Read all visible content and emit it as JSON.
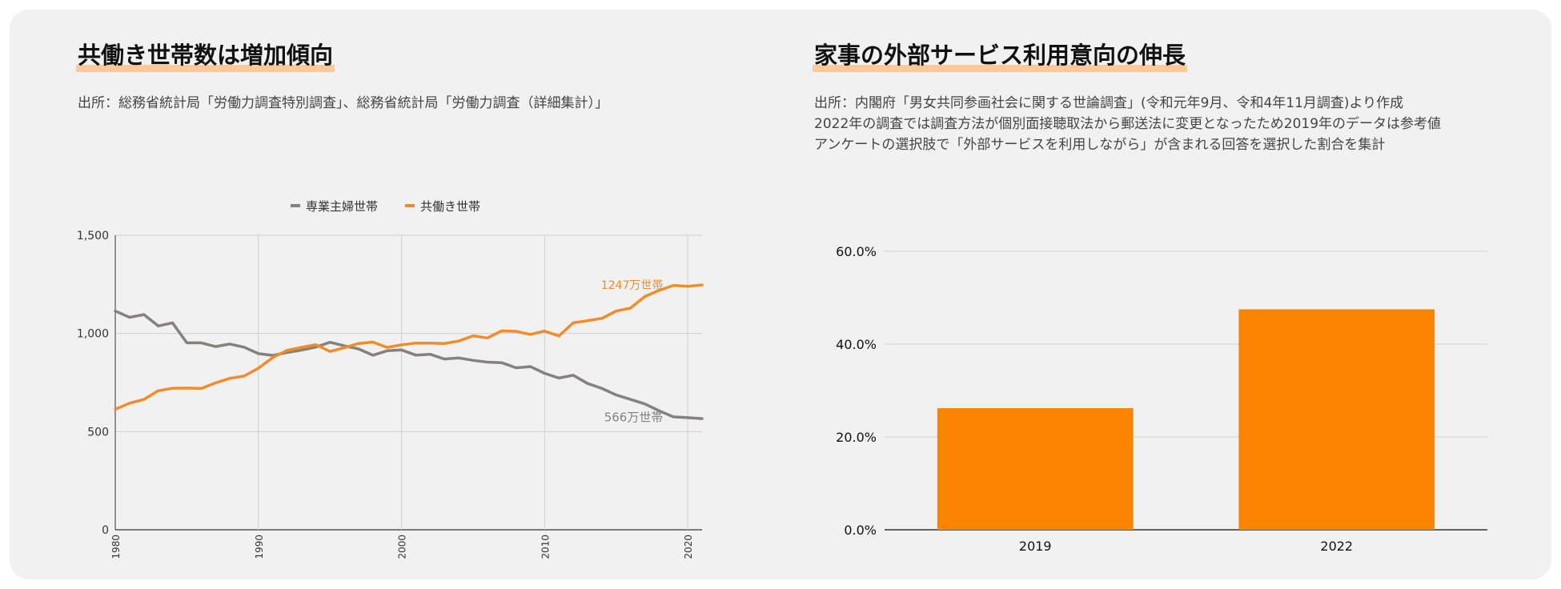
{
  "left_panel": {
    "title": "共働き世帯数は増加傾向",
    "source": "出所：総務省統計局「労働力調査特別調査」、総務省統計局「労働力調査（詳細集計）」"
  },
  "right_panel": {
    "title": "家事の外部サービス利用意向の伸長",
    "notes": [
      "出所：内閣府「男女共同参画社会に関する世論調査」(令和元年9月、令和4年11月調査)より作成",
      "2022年の調査では調査方法が個別面接聴取法から郵送法に変更となったため2019年のデータは参考値",
      "アンケートの選択肢で「外部サービスを利用しながら」が含まれる回答を選択した割合を集計"
    ]
  },
  "colors": {
    "gray": "#85827e",
    "orange": "#f28c28",
    "bar": "#fb8500"
  },
  "chart_data": [
    {
      "type": "line",
      "x": [
        1980,
        1981,
        1982,
        1983,
        1984,
        1985,
        1986,
        1987,
        1988,
        1989,
        1990,
        1991,
        1992,
        1993,
        1994,
        1995,
        1996,
        1997,
        1998,
        1999,
        2000,
        2001,
        2002,
        2003,
        2004,
        2005,
        2006,
        2007,
        2008,
        2009,
        2010,
        2011,
        2012,
        2013,
        2014,
        2015,
        2016,
        2017,
        2018,
        2019,
        2020,
        2021
      ],
      "series": [
        {
          "name": "専業主婦世帯",
          "color": "#85827e",
          "values": [
            1114,
            1082,
            1096,
            1038,
            1054,
            952,
            952,
            933,
            946,
            930,
            897,
            888,
            903,
            915,
            930,
            955,
            937,
            921,
            889,
            912,
            916,
            890,
            894,
            870,
            875,
            863,
            854,
            851,
            825,
            831,
            797,
            773,
            787,
            745,
            720,
            687,
            664,
            641,
            606,
            575,
            571,
            566
          ]
        },
        {
          "name": "共働き世帯",
          "color": "#f28c28",
          "values": [
            614,
            645,
            664,
            708,
            721,
            722,
            720,
            748,
            771,
            783,
            823,
            877,
            914,
            929,
            943,
            908,
            927,
            949,
            956,
            929,
            942,
            951,
            951,
            949,
            961,
            988,
            977,
            1013,
            1011,
            995,
            1012,
            987,
            1054,
            1065,
            1077,
            1114,
            1129,
            1188,
            1219,
            1245,
            1240,
            1247
          ]
        }
      ],
      "ylim": [
        0,
        1500
      ],
      "yticks": [
        "0",
        "500",
        "1,000",
        "1,500"
      ],
      "xticks": [
        "1980",
        "1990",
        "2000",
        "2010",
        "2020"
      ],
      "annotations": {
        "orange_end": "1247万世帯",
        "gray_end": "566万世帯"
      },
      "legend": "top",
      "grid": true
    },
    {
      "type": "bar",
      "categories": [
        "2019",
        "2022"
      ],
      "values": [
        26.2,
        47.5
      ],
      "ylim": [
        0,
        60
      ],
      "yticks": [
        "0.0%",
        "20.0%",
        "40.0%",
        "60.0%"
      ],
      "grid": true
    }
  ]
}
